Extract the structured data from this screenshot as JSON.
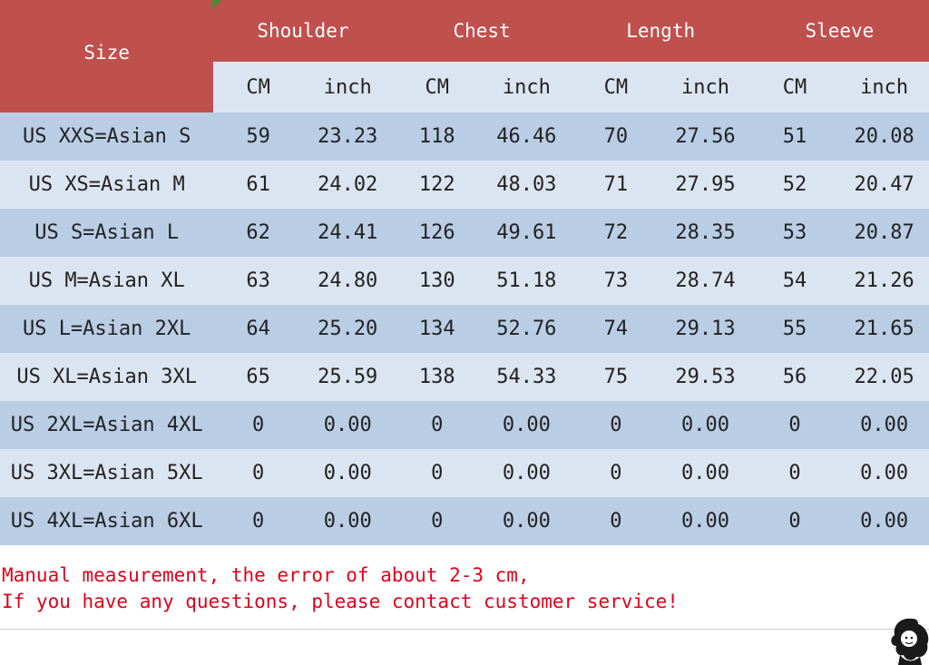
{
  "table": {
    "size_header": "Size",
    "groups": [
      "Shoulder",
      "Chest",
      "Length",
      "Sleeve"
    ],
    "units": [
      "CM",
      "inch",
      "CM",
      "inch",
      "CM",
      "inch",
      "CM",
      "inch"
    ],
    "rows": [
      [
        "US XXS=Asian S",
        "59",
        "23.23",
        "118",
        "46.46",
        "70",
        "27.56",
        "51",
        "20.08"
      ],
      [
        "US XS=Asian M",
        "61",
        "24.02",
        "122",
        "48.03",
        "71",
        "27.95",
        "52",
        "20.47"
      ],
      [
        "US S=Asian L",
        "62",
        "24.41",
        "126",
        "49.61",
        "72",
        "28.35",
        "53",
        "20.87"
      ],
      [
        "US M=Asian XL",
        "63",
        "24.80",
        "130",
        "51.18",
        "73",
        "28.74",
        "54",
        "21.26"
      ],
      [
        "US L=Asian 2XL",
        "64",
        "25.20",
        "134",
        "52.76",
        "74",
        "29.13",
        "55",
        "21.65"
      ],
      [
        "US XL=Asian 3XL",
        "65",
        "25.59",
        "138",
        "54.33",
        "75",
        "29.53",
        "56",
        "22.05"
      ],
      [
        "US 2XL=Asian 4XL",
        "0",
        "0.00",
        "0",
        "0.00",
        "0",
        "0.00",
        "0",
        "0.00"
      ],
      [
        "US 3XL=Asian 5XL",
        "0",
        "0.00",
        "0",
        "0.00",
        "0",
        "0.00",
        "0",
        "0.00"
      ],
      [
        "US 4XL=Asian 6XL",
        "0",
        "0.00",
        "0",
        "0.00",
        "0",
        "0.00",
        "0",
        "0.00"
      ]
    ]
  },
  "note": {
    "line1": "Manual measurement, the error of about 2-3 cm,",
    "line2": "If you have any questions, please contact customer service!"
  },
  "colors": {
    "header_red": "#c0504d",
    "row_dark": "#b9cde5",
    "row_light": "#dbe5f1",
    "note_red": "#e0001b"
  },
  "icons": {
    "logo": "girl-silhouette-logo"
  }
}
